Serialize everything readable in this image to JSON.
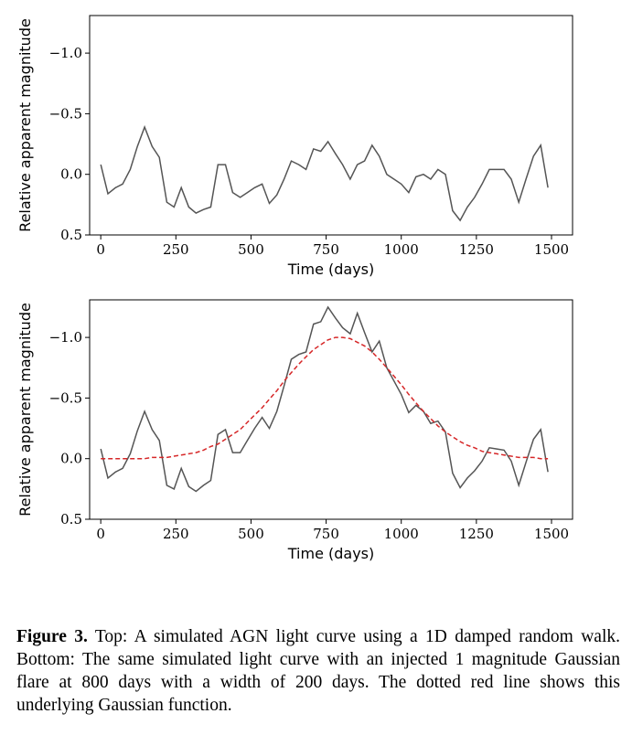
{
  "chart_data": [
    {
      "type": "line",
      "xlabel": "Time (days)",
      "ylabel": "Relative apparent magnitude",
      "x": [
        0,
        24,
        49,
        73,
        98,
        122,
        146,
        171,
        195,
        220,
        244,
        268,
        293,
        317,
        342,
        366,
        390,
        415,
        439,
        464,
        488,
        512,
        537,
        561,
        586,
        610,
        634,
        659,
        683,
        708,
        732,
        756,
        781,
        805,
        830,
        854,
        878,
        903,
        927,
        952,
        976,
        1000,
        1025,
        1049,
        1074,
        1098,
        1122,
        1147,
        1171,
        1196,
        1220,
        1244,
        1269,
        1293,
        1318,
        1342,
        1366,
        1391,
        1415,
        1440,
        1464,
        1488
      ],
      "series": [
        {
          "color": "#555555",
          "values": [
            -0.08,
            0.16,
            0.11,
            0.08,
            -0.04,
            -0.23,
            -0.39,
            -0.23,
            -0.14,
            0.23,
            0.27,
            0.11,
            0.27,
            0.32,
            0.29,
            0.27,
            -0.08,
            -0.08,
            0.15,
            0.19,
            0.15,
            0.11,
            0.08,
            0.24,
            0.17,
            0.04,
            -0.11,
            -0.08,
            -0.04,
            -0.21,
            -0.19,
            -0.27,
            -0.17,
            -0.08,
            0.04,
            -0.08,
            -0.11,
            -0.24,
            -0.15,
            0.0,
            0.04,
            0.08,
            0.15,
            0.02,
            0.0,
            0.04,
            -0.04,
            0.0,
            0.3,
            0.38,
            0.27,
            0.19,
            0.08,
            -0.04,
            -0.04,
            -0.04,
            0.04,
            0.23,
            0.04,
            -0.15,
            -0.24,
            0.11
          ]
        }
      ],
      "xlim": [
        -37,
        1570
      ],
      "xticks": [
        0,
        250,
        500,
        750,
        1000,
        1250,
        1500
      ],
      "ylim": [
        0.5,
        -1.31
      ],
      "yticks": [
        {
          "value": -1.0,
          "label": "−1.0"
        },
        {
          "value": -0.5,
          "label": "−0.5"
        },
        {
          "value": 0.0,
          "label": "0.0"
        },
        0.5
      ]
    },
    {
      "type": "line",
      "xlabel": "Time (days)",
      "ylabel": "Relative apparent magnitude",
      "x": [
        0,
        24,
        49,
        73,
        98,
        122,
        146,
        171,
        195,
        220,
        244,
        268,
        293,
        317,
        342,
        366,
        390,
        415,
        439,
        464,
        488,
        512,
        537,
        561,
        586,
        610,
        634,
        659,
        683,
        708,
        732,
        756,
        781,
        805,
        830,
        854,
        878,
        903,
        927,
        952,
        976,
        1000,
        1025,
        1049,
        1074,
        1098,
        1122,
        1147,
        1171,
        1196,
        1220,
        1244,
        1269,
        1293,
        1318,
        1342,
        1366,
        1391,
        1415,
        1440,
        1464,
        1488
      ],
      "series": [
        {
          "color": "#555555",
          "values": [
            -0.08,
            0.16,
            0.11,
            0.08,
            -0.04,
            -0.23,
            -0.39,
            -0.24,
            -0.15,
            0.22,
            0.25,
            0.08,
            0.23,
            0.27,
            0.22,
            0.18,
            -0.2,
            -0.24,
            -0.05,
            -0.05,
            -0.15,
            -0.25,
            -0.34,
            -0.25,
            -0.39,
            -0.6,
            -0.82,
            -0.86,
            -0.88,
            -1.11,
            -1.13,
            -1.25,
            -1.16,
            -1.08,
            -1.03,
            -1.2,
            -1.04,
            -0.88,
            -0.97,
            -0.75,
            -0.64,
            -0.53,
            -0.38,
            -0.44,
            -0.39,
            -0.29,
            -0.31,
            -0.22,
            0.12,
            0.24,
            0.16,
            0.1,
            0.02,
            -0.09,
            -0.08,
            -0.07,
            0.02,
            0.22,
            0.03,
            -0.16,
            -0.24,
            0.11
          ]
        },
        {
          "color": "#d62728",
          "dashed": true,
          "values": [
            0,
            0,
            0,
            0,
            0,
            0,
            0,
            -0.01,
            -0.01,
            -0.01,
            -0.02,
            -0.03,
            -0.04,
            -0.05,
            -0.07,
            -0.1,
            -0.12,
            -0.16,
            -0.2,
            -0.24,
            -0.3,
            -0.36,
            -0.42,
            -0.49,
            -0.56,
            -0.64,
            -0.71,
            -0.78,
            -0.84,
            -0.9,
            -0.94,
            -0.98,
            -1.0,
            -1.0,
            -0.99,
            -0.96,
            -0.93,
            -0.88,
            -0.82,
            -0.75,
            -0.68,
            -0.61,
            -0.53,
            -0.46,
            -0.39,
            -0.33,
            -0.27,
            -0.22,
            -0.18,
            -0.14,
            -0.11,
            -0.09,
            -0.06,
            -0.05,
            -0.04,
            -0.03,
            -0.02,
            -0.01,
            -0.01,
            -0.01,
            0,
            0
          ]
        }
      ],
      "xlim": [
        -37,
        1570
      ],
      "xticks": [
        0,
        250,
        500,
        750,
        1000,
        1250,
        1500
      ],
      "ylim": [
        0.5,
        -1.31
      ],
      "yticks": [
        {
          "value": -1.0,
          "label": "−1.0"
        },
        {
          "value": -0.5,
          "label": "−0.5"
        },
        {
          "value": 0.0,
          "label": "0.0"
        },
        0.5
      ]
    }
  ],
  "caption": {
    "label": "Figure 3.",
    "text": "Top: A simulated AGN light curve using a 1D damped random walk. Bottom: The same simulated light curve with an injected 1 magnitude Gaussian flare at 800 days with a width of 200 days. The dotted red line shows this underlying Gaussian function."
  }
}
